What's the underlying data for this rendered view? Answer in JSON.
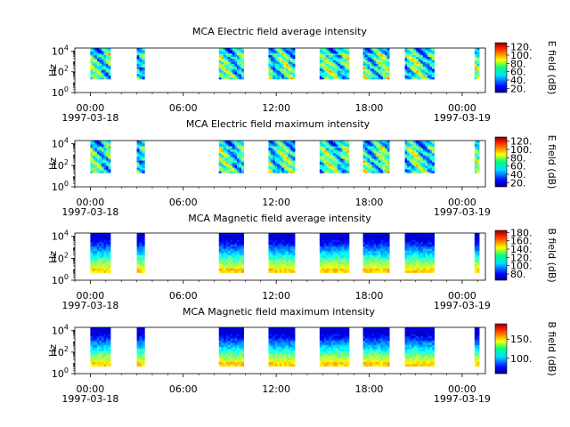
{
  "chart_data": [
    {
      "type": "heatmap",
      "title": "MCA  Electric field average intensity",
      "ylabel": "Hz",
      "xlabel": "",
      "colorbar_label": "E field (dB)",
      "y_scale": "log",
      "y_ticks": [
        {
          "value": 1,
          "base": "10",
          "exp": "0"
        },
        {
          "value": 100,
          "base": "10",
          "exp": "2"
        },
        {
          "value": 10000,
          "base": "10",
          "exp": "4"
        }
      ],
      "ylim": [
        1,
        20000
      ],
      "x_ticks": [
        {
          "time": "00:00",
          "date": "1997-03-18"
        },
        {
          "time": "06:00",
          "date": ""
        },
        {
          "time": "12:00",
          "date": ""
        },
        {
          "time": "18:00",
          "date": ""
        },
        {
          "time": "00:00",
          "date": "1997-03-19"
        }
      ],
      "xlim_hours": [
        -1,
        25.5
      ],
      "colorbar_ticks": [
        "20.",
        "40.",
        "60.",
        "80.",
        "100.",
        "120."
      ],
      "colorbar_range": [
        10,
        130
      ],
      "colormap": "jet",
      "data_intervals_hours": [
        [
          0.0,
          1.3
        ],
        [
          3.0,
          3.5
        ],
        [
          8.3,
          9.9
        ],
        [
          11.5,
          13.2
        ],
        [
          14.8,
          16.7
        ],
        [
          17.6,
          19.3
        ],
        [
          20.3,
          22.2
        ],
        [
          24.8,
          25.1
        ]
      ],
      "freq_range_hz": [
        20,
        20000
      ],
      "character": "electric"
    },
    {
      "type": "heatmap",
      "title": "MCA  Electric field maximum intensity",
      "ylabel": "Hz",
      "xlabel": "",
      "colorbar_label": "E field (dB)",
      "y_scale": "log",
      "y_ticks": [
        {
          "value": 1,
          "base": "10",
          "exp": "0"
        },
        {
          "value": 100,
          "base": "10",
          "exp": "2"
        },
        {
          "value": 10000,
          "base": "10",
          "exp": "4"
        }
      ],
      "ylim": [
        1,
        20000
      ],
      "x_ticks": [
        {
          "time": "00:00",
          "date": "1997-03-18"
        },
        {
          "time": "06:00",
          "date": ""
        },
        {
          "time": "12:00",
          "date": ""
        },
        {
          "time": "18:00",
          "date": ""
        },
        {
          "time": "00:00",
          "date": "1997-03-19"
        }
      ],
      "xlim_hours": [
        -1,
        25.5
      ],
      "colorbar_ticks": [
        "20.",
        "40.",
        "60.",
        "80.",
        "100.",
        "120."
      ],
      "colorbar_range": [
        10,
        130
      ],
      "colormap": "jet",
      "data_intervals_hours": [
        [
          0.0,
          1.3
        ],
        [
          3.0,
          3.5
        ],
        [
          8.3,
          9.9
        ],
        [
          11.5,
          13.2
        ],
        [
          14.8,
          16.7
        ],
        [
          17.6,
          19.3
        ],
        [
          20.3,
          22.2
        ],
        [
          24.8,
          25.1
        ]
      ],
      "freq_range_hz": [
        20,
        20000
      ],
      "character": "electric"
    },
    {
      "type": "heatmap",
      "title": "MCA  Magnetic field average intensity",
      "ylabel": "Hz",
      "xlabel": "",
      "colorbar_label": "B field (dB)",
      "y_scale": "log",
      "y_ticks": [
        {
          "value": 1,
          "base": "10",
          "exp": "0"
        },
        {
          "value": 100,
          "base": "10",
          "exp": "2"
        },
        {
          "value": 10000,
          "base": "10",
          "exp": "4"
        }
      ],
      "ylim": [
        1,
        20000
      ],
      "x_ticks": [
        {
          "time": "00:00",
          "date": "1997-03-18"
        },
        {
          "time": "06:00",
          "date": ""
        },
        {
          "time": "12:00",
          "date": ""
        },
        {
          "time": "18:00",
          "date": ""
        },
        {
          "time": "00:00",
          "date": "1997-03-19"
        }
      ],
      "xlim_hours": [
        -1,
        25.5
      ],
      "colorbar_ticks": [
        "80.",
        "100.",
        "120.",
        "140.",
        "160.",
        "180."
      ],
      "colorbar_range": [
        65,
        185
      ],
      "colormap": "jet",
      "data_intervals_hours": [
        [
          0.0,
          1.3
        ],
        [
          3.0,
          3.5
        ],
        [
          8.3,
          9.9
        ],
        [
          11.5,
          13.2
        ],
        [
          14.8,
          16.7
        ],
        [
          17.6,
          19.3
        ],
        [
          20.3,
          22.2
        ],
        [
          24.8,
          25.1
        ]
      ],
      "freq_range_hz": [
        5,
        20000
      ],
      "character": "magnetic"
    },
    {
      "type": "heatmap",
      "title": "MCA  Magnetic field maximum intensity",
      "ylabel": "Hz",
      "xlabel": "",
      "colorbar_label": "B field (dB)",
      "y_scale": "log",
      "y_ticks": [
        {
          "value": 1,
          "base": "10",
          "exp": "0"
        },
        {
          "value": 100,
          "base": "10",
          "exp": "2"
        },
        {
          "value": 10000,
          "base": "10",
          "exp": "4"
        }
      ],
      "ylim": [
        1,
        20000
      ],
      "x_ticks": [
        {
          "time": "00:00",
          "date": "1997-03-18"
        },
        {
          "time": "06:00",
          "date": ""
        },
        {
          "time": "12:00",
          "date": ""
        },
        {
          "time": "18:00",
          "date": ""
        },
        {
          "time": "00:00",
          "date": "1997-03-19"
        }
      ],
      "xlim_hours": [
        -1,
        25.5
      ],
      "colorbar_ticks": [
        "100.",
        "150."
      ],
      "colorbar_range": [
        60,
        190
      ],
      "colormap": "jet",
      "data_intervals_hours": [
        [
          0.0,
          1.3
        ],
        [
          3.0,
          3.5
        ],
        [
          8.3,
          9.9
        ],
        [
          11.5,
          13.2
        ],
        [
          14.8,
          16.7
        ],
        [
          17.6,
          19.3
        ],
        [
          20.3,
          22.2
        ],
        [
          24.8,
          25.1
        ]
      ],
      "freq_range_hz": [
        5,
        20000
      ],
      "character": "magnetic"
    }
  ]
}
